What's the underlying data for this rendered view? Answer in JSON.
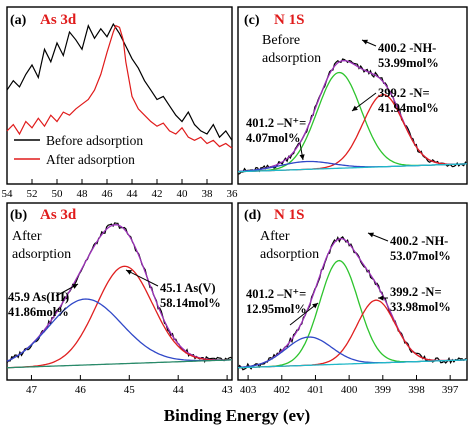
{
  "x_axis_title": "Binding Energy (ev)",
  "chart_data": [
    {
      "type": "line",
      "panel_letter": "(a)",
      "element_title": "As 3d",
      "x_range": [
        54,
        36
      ],
      "x_reversed": true,
      "x_ticks": [
        54,
        52,
        50,
        48,
        46,
        44,
        42,
        40,
        38,
        36
      ],
      "y_ticks_shown": false,
      "legend": {
        "position": "bottom-left",
        "entries": [
          "Before adsorption",
          "After adsorption"
        ]
      },
      "series": [
        {
          "name": "Before adsorption",
          "color": "#000000",
          "values_normalized": true,
          "x": [
            54.0,
            53.5,
            53.0,
            52.5,
            52.0,
            51.5,
            51.0,
            50.5,
            50.0,
            49.5,
            49.0,
            48.5,
            48.0,
            47.5,
            47.0,
            46.5,
            46.0,
            45.5,
            45.0,
            44.5,
            44.0,
            43.5,
            43.0,
            42.5,
            42.0,
            41.5,
            41.0,
            40.5,
            40.0,
            39.5,
            39.0,
            38.5,
            38.0,
            37.5,
            37.0,
            36.5,
            36.0
          ],
          "y": [
            0.56,
            0.62,
            0.58,
            0.66,
            0.72,
            0.64,
            0.82,
            0.74,
            0.86,
            0.78,
            0.93,
            0.88,
            0.82,
            0.97,
            0.89,
            0.95,
            0.9,
            0.98,
            0.92,
            0.84,
            0.76,
            0.7,
            0.62,
            0.56,
            0.5,
            0.52,
            0.46,
            0.4,
            0.36,
            0.42,
            0.34,
            0.3,
            0.28,
            0.34,
            0.26,
            0.3,
            0.24
          ]
        },
        {
          "name": "After adsorption",
          "color": "#e01b1b",
          "values_normalized": true,
          "x": [
            54.0,
            53.5,
            53.0,
            52.5,
            52.0,
            51.5,
            51.0,
            50.5,
            50.0,
            49.5,
            49.0,
            48.5,
            48.0,
            47.5,
            47.0,
            46.5,
            46.0,
            45.5,
            45.3,
            45.0,
            44.7,
            44.5,
            44.0,
            43.5,
            43.0,
            42.5,
            42.0,
            41.5,
            41.0,
            40.5,
            40.0,
            39.5,
            39.0,
            38.5,
            38.0,
            37.5,
            37.0,
            36.5,
            36.0
          ],
          "y": [
            0.3,
            0.34,
            0.28,
            0.36,
            0.32,
            0.38,
            0.33,
            0.4,
            0.36,
            0.42,
            0.4,
            0.44,
            0.47,
            0.5,
            0.56,
            0.66,
            0.8,
            0.93,
            0.97,
            0.96,
            0.88,
            0.74,
            0.52,
            0.44,
            0.4,
            0.36,
            0.33,
            0.35,
            0.3,
            0.28,
            0.32,
            0.26,
            0.24,
            0.26,
            0.22,
            0.24,
            0.2,
            0.22,
            0.19
          ]
        }
      ],
      "annotations": []
    },
    {
      "type": "line",
      "panel_letter": "(c)",
      "element_title": "N 1S",
      "x_range": [
        403,
        397
      ],
      "x_reversed": true,
      "x_ticks": [],
      "y_ticks_shown": false,
      "corner_text": [
        "Before",
        "adsorption"
      ],
      "series": [
        {
          "color": "#000000",
          "values_normalized": true,
          "peak_center": 400.2,
          "peak_height": 0.92,
          "noise": true
        },
        {
          "color": "#9b30b8",
          "values_normalized": true,
          "peak_center": 400.2,
          "peak_height": 0.92
        },
        {
          "color": "#2ec42e",
          "values_normalized": true,
          "peak_center": 400.35,
          "peak_height": 0.61,
          "fwhm": 1.35
        },
        {
          "color": "#e02020",
          "values_normalized": true,
          "peak_center": 399.2,
          "peak_height": 0.46,
          "fwhm": 1.25
        },
        {
          "color": "#3048c8",
          "values_normalized": true,
          "peak_center": 401.2,
          "peak_height": 0.05,
          "fwhm": 1.6
        },
        {
          "color": "#22b8c8",
          "values_normalized": true,
          "baseline": true
        }
      ],
      "annotations": [
        {
          "lines": [
            "400.2 -NH-",
            "53.99mol%"
          ]
        },
        {
          "lines": [
            "399.2 -N=",
            "41.94mol%"
          ]
        },
        {
          "lines": [
            "401.2 –N⁺=",
            "4.07mol%"
          ]
        }
      ]
    },
    {
      "type": "line",
      "panel_letter": "(b)",
      "element_title": "As 3d",
      "x_range": [
        47.5,
        42.9
      ],
      "x_reversed": true,
      "x_ticks": [
        47,
        46,
        45,
        44,
        43
      ],
      "y_ticks_shown": false,
      "corner_text": [
        "After",
        "adsorption"
      ],
      "series": [
        {
          "color": "#000000",
          "values_normalized": true,
          "peak_center": 45.2,
          "peak_height": 0.93,
          "noise": true
        },
        {
          "color": "#9b30b8",
          "values_normalized": true,
          "peak_center": 45.2,
          "peak_height": 0.93
        },
        {
          "color": "#e02020",
          "values_normalized": true,
          "peak_center": 45.1,
          "peak_height": 0.62,
          "fwhm": 1.35
        },
        {
          "color": "#3048c8",
          "values_normalized": true,
          "peak_center": 45.9,
          "peak_height": 0.42,
          "fwhm": 1.75
        },
        {
          "color": "#2a8a6a",
          "values_normalized": true,
          "baseline": true
        }
      ],
      "annotations": [
        {
          "lines": [
            "45.1 As(V)",
            "58.14mol%"
          ]
        },
        {
          "lines": [
            "45.9 As(III)",
            "41.86mol%"
          ]
        }
      ]
    },
    {
      "type": "line",
      "panel_letter": "(d)",
      "element_title": "N 1S",
      "x_range": [
        403.3,
        396.5
      ],
      "x_reversed": true,
      "x_ticks": [
        403,
        402,
        401,
        400,
        399,
        398,
        397
      ],
      "y_ticks_shown": false,
      "corner_text": [
        "After",
        "adsorption"
      ],
      "series": [
        {
          "color": "#000000",
          "values_normalized": true,
          "peak_center": 400.2,
          "peak_height": 0.93,
          "noise": true
        },
        {
          "color": "#9b30b8",
          "values_normalized": true,
          "peak_center": 400.2,
          "peak_height": 0.93
        },
        {
          "color": "#2ec42e",
          "values_normalized": true,
          "peak_center": 400.3,
          "peak_height": 0.66,
          "fwhm": 1.35
        },
        {
          "color": "#e02020",
          "values_normalized": true,
          "peak_center": 399.2,
          "peak_height": 0.4,
          "fwhm": 1.35
        },
        {
          "color": "#3048c8",
          "values_normalized": true,
          "peak_center": 401.2,
          "peak_height": 0.18,
          "fwhm": 1.6
        },
        {
          "color": "#22b8c8",
          "values_normalized": true,
          "baseline": true
        }
      ],
      "annotations": [
        {
          "lines": [
            "400.2 -NH-",
            "53.07mol%"
          ]
        },
        {
          "lines": [
            "399.2 -N=",
            "33.98mol%"
          ]
        },
        {
          "lines": [
            "401.2 –N⁺=",
            "12.95mol%"
          ]
        }
      ]
    }
  ]
}
